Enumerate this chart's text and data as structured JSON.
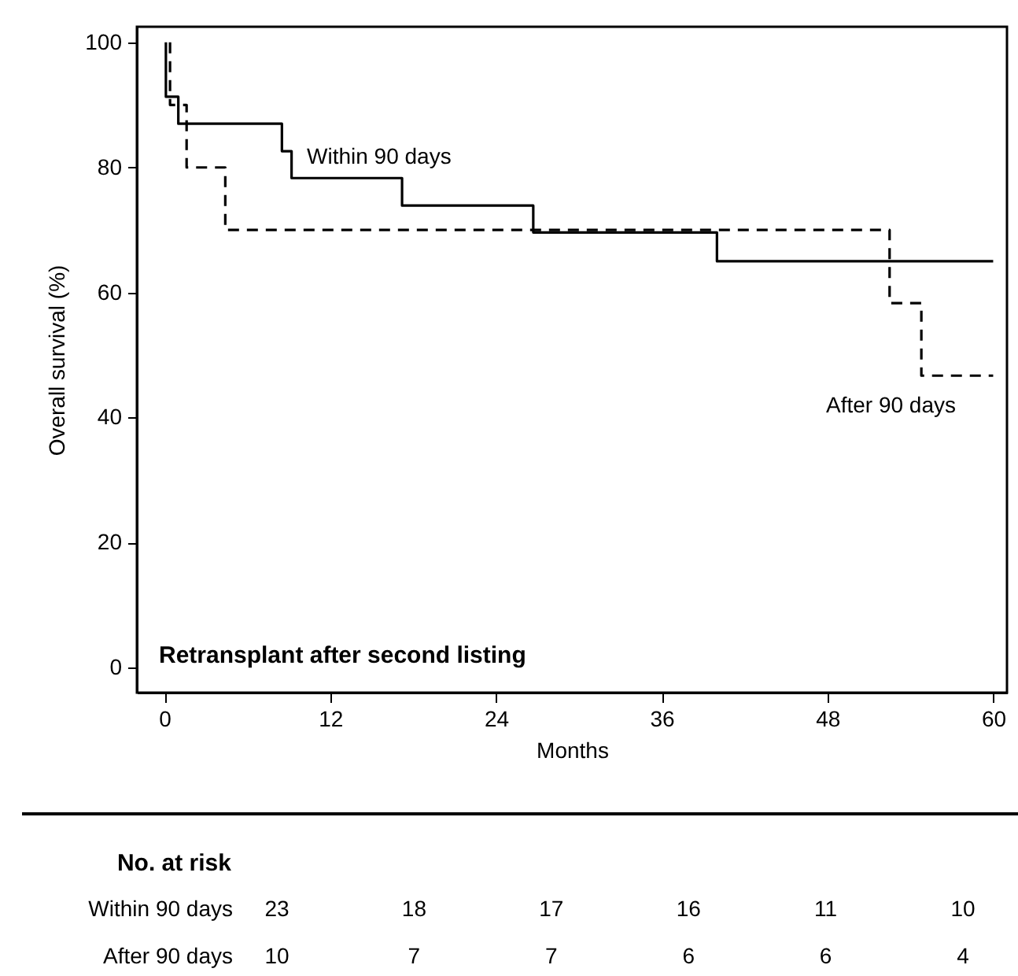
{
  "chart_data": {
    "type": "step",
    "xlabel": "Months",
    "ylabel": "Overall survival (%)",
    "xlim": [
      -2,
      61
    ],
    "ylim": [
      -4,
      102.5
    ],
    "xticks": [
      0,
      12,
      24,
      36,
      48,
      60
    ],
    "yticks": [
      0,
      20,
      40,
      60,
      80,
      100
    ],
    "series": [
      {
        "name": "Within 90 days",
        "color": "#000000",
        "line_style": "solid",
        "x": [
          0.1,
          0.1,
          1.0,
          8.5,
          9.2,
          17.2,
          26.7,
          40.0,
          60
        ],
        "values": [
          100,
          91.3,
          87,
          82.6,
          78.3,
          73.9,
          69.6,
          65,
          65
        ]
      },
      {
        "name": "After 90 days",
        "color": "#000000",
        "line_style": "dashed",
        "x": [
          0.4,
          0.4,
          1.6,
          4.4,
          52.5,
          54.8,
          60
        ],
        "values": [
          100,
          90,
          80,
          70,
          58.3,
          46.7,
          46.7
        ]
      }
    ],
    "grid": false,
    "legend": false,
    "annotations": [
      "Retransplant after second listing",
      "No. at risk",
      "Within 90 days",
      "23",
      "18",
      "17",
      "16",
      "11",
      "10",
      "After 90 days",
      "10",
      "7",
      "7",
      "6",
      "6",
      "4"
    ]
  }
}
